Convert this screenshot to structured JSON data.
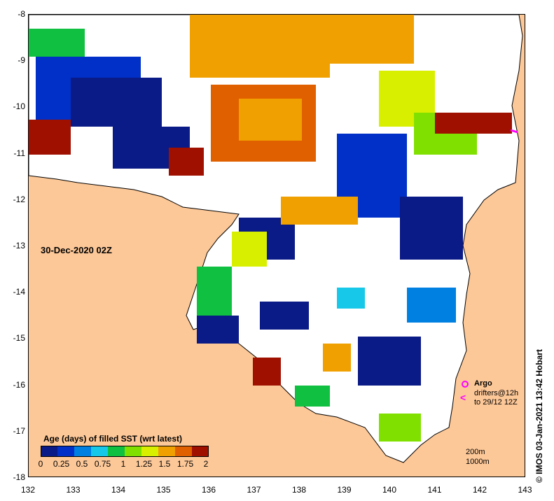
{
  "map": {
    "date_label": "30-Dec-2020 02Z",
    "x_ticks": [
      "132",
      "133",
      "134",
      "135",
      "136",
      "137",
      "138",
      "139",
      "140",
      "141",
      "142",
      "143"
    ],
    "y_ticks": [
      "-8",
      "-9",
      "-10",
      "-11",
      "-12",
      "-13",
      "-14",
      "-15",
      "-16",
      "-17",
      "-18"
    ],
    "colorbar": {
      "title": "Age (days) of filled SST (wrt latest)",
      "ticks": [
        "0",
        "0.25",
        "0.5",
        "0.75",
        "1",
        "1.25",
        "1.5",
        "1.75",
        "2"
      ],
      "colors": [
        "#0a1a86",
        "#0030c8",
        "#0080e0",
        "#18c8e8",
        "#10c040",
        "#80e000",
        "#d8f000",
        "#f0a000",
        "#e06000",
        "#a01000"
      ]
    },
    "legend": {
      "argo_label": "Argo",
      "drifters_label": "drifters@12h",
      "drifters_range": "to 29/12 12Z",
      "contour_200": "200m",
      "contour_1000": "1000m"
    },
    "credit": "© IMOS 03-Jan-2021 13:42 Hobart",
    "colors": {
      "land": "#fdc898",
      "no_data": "#ffffff",
      "marker": "#ff00ff"
    }
  }
}
